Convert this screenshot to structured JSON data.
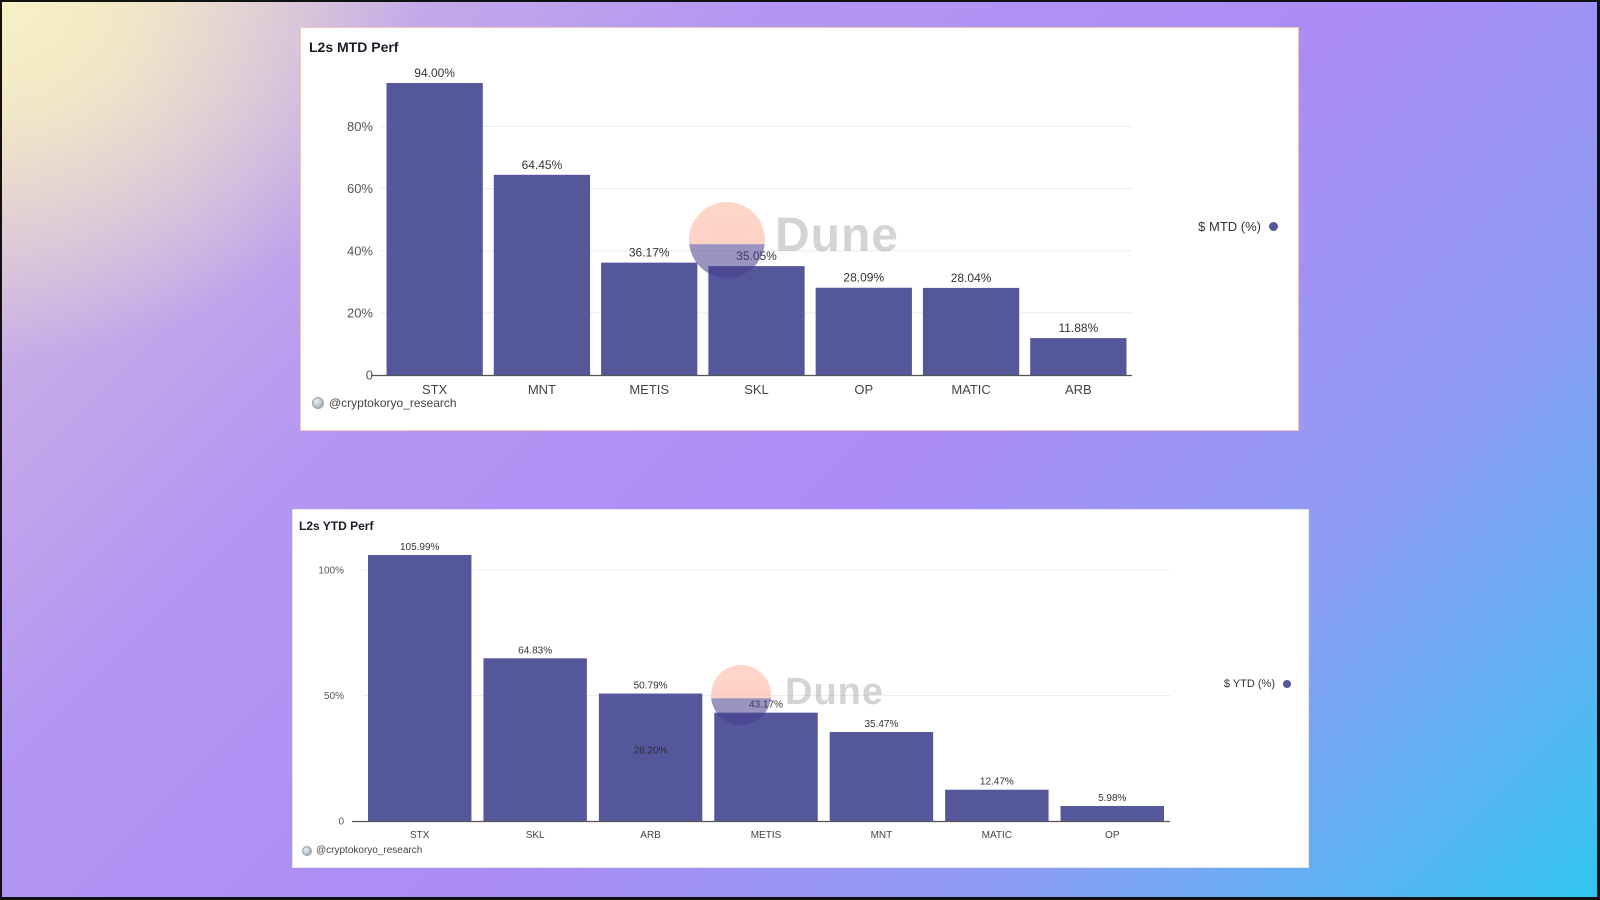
{
  "theme": {
    "bar_color": "#55579b",
    "axis_color": "#555555",
    "grid_color": "#ececf0"
  },
  "watermark": {
    "text": "Dune"
  },
  "chart_data": [
    {
      "type": "bar",
      "title": "L2s MTD Perf",
      "author": "@cryptokoryo_research",
      "categories": [
        "STX",
        "MNT",
        "METIS",
        "SKL",
        "OP",
        "MATIC",
        "ARB"
      ],
      "series": [
        {
          "name": "$ MTD (%)",
          "values": [
            94.0,
            64.45,
            36.17,
            35.05,
            28.09,
            28.04,
            11.88
          ]
        }
      ],
      "data_labels": [
        "94.00%",
        "64.45%",
        "36.17%",
        "35.05%",
        "28.09%",
        "28.04%",
        "11.88%"
      ],
      "yticks": [
        {
          "value": 0,
          "label": "0"
        },
        {
          "value": 20,
          "label": "20%"
        },
        {
          "value": 40,
          "label": "40%"
        },
        {
          "value": 60,
          "label": "60%"
        },
        {
          "value": 80,
          "label": "80%"
        }
      ],
      "ylim": [
        0,
        94
      ],
      "grid": true,
      "legend": "right"
    },
    {
      "type": "bar",
      "title": "L2s YTD Perf",
      "author": "@cryptokoryo_research",
      "categories": [
        "STX",
        "SKL",
        "ARB",
        "METIS",
        "MNT",
        "MATIC",
        "OP"
      ],
      "series": [
        {
          "name": "$ YTD (%)",
          "values": [
            105.99,
            64.83,
            50.79,
            43.17,
            35.47,
            12.47,
            5.98
          ]
        }
      ],
      "data_labels": [
        "105.99%",
        "64.83%",
        "50.79%",
        "43.17%",
        "35.47%",
        "12.47%",
        "5.98%"
      ],
      "annotations": [
        {
          "category": "ARB",
          "label": "28.20%",
          "value": 28.2
        }
      ],
      "yticks": [
        {
          "value": 0,
          "label": "0"
        },
        {
          "value": 50,
          "label": "50%"
        },
        {
          "value": 100,
          "label": "100%"
        }
      ],
      "ylim": [
        0,
        106
      ],
      "grid": true,
      "legend": "right"
    }
  ]
}
